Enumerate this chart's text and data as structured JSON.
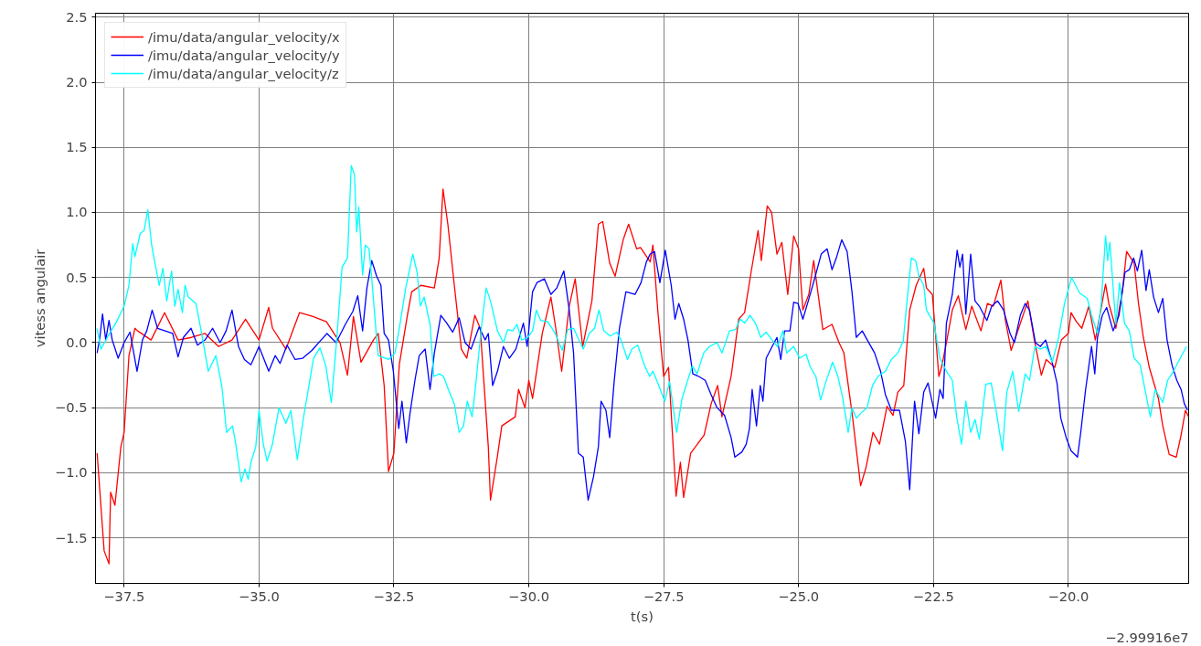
{
  "chart_data": {
    "type": "line",
    "xlabel": "t(s)",
    "ylabel": "vitess angulair",
    "annotations": [
      "−2.99916e7"
    ],
    "xlim": [
      -38.03,
      -17.77
    ],
    "ylim": [
      -1.85,
      2.53
    ],
    "xticks": [
      {
        "value": -37.5,
        "label": "−37.5"
      },
      {
        "value": -35.0,
        "label": "−35.0"
      },
      {
        "value": -32.5,
        "label": "−32.5"
      },
      {
        "value": -30.0,
        "label": "−30.0"
      },
      {
        "value": -27.5,
        "label": "−27.5"
      },
      {
        "value": -25.0,
        "label": "−25.0"
      },
      {
        "value": -22.5,
        "label": "−22.5"
      },
      {
        "value": -20.0,
        "label": "−20.0"
      }
    ],
    "yticks": [
      {
        "value": -1.5,
        "label": "−1.5"
      },
      {
        "value": -1.0,
        "label": "−1.0"
      },
      {
        "value": -0.5,
        "label": "−0.5"
      },
      {
        "value": 0,
        "label": "0.0"
      },
      {
        "value": 0.5,
        "label": "0.5"
      },
      {
        "value": 1.0,
        "label": "1.0"
      },
      {
        "value": 1.5,
        "label": "1.5"
      },
      {
        "value": 2.0,
        "label": "2.0"
      },
      {
        "value": 2.5,
        "label": "2.5"
      }
    ],
    "grid": true,
    "legend": "top left",
    "marker": "none",
    "line_style": "solid",
    "series": [
      {
        "name": "/imu/data/angular_velocity/x",
        "color": "#ff0000",
        "x": [
          -38.0,
          -37.87,
          -37.78,
          -37.75,
          -37.67,
          -37.56,
          -37.5,
          -37.41,
          -37.3,
          -37.25,
          -37.0,
          -36.75,
          -36.5,
          -36.25,
          -36.0,
          -35.75,
          -35.5,
          -35.25,
          -35.0,
          -34.82,
          -34.75,
          -34.5,
          -34.25,
          -34.0,
          -33.75,
          -33.5,
          -33.36,
          -33.25,
          -33.11,
          -33.0,
          -32.88,
          -32.79,
          -32.68,
          -32.6,
          -32.5,
          -32.4,
          -32.25,
          -32.17,
          -32.0,
          -31.75,
          -31.66,
          -31.59,
          -31.5,
          -31.38,
          -31.25,
          -31.15,
          -31.0,
          -30.9,
          -30.75,
          -30.71,
          -30.58,
          -30.5,
          -30.25,
          -30.19,
          -30.07,
          -30.0,
          -29.93,
          -29.75,
          -29.59,
          -29.5,
          -29.39,
          -29.25,
          -29.14,
          -29.0,
          -28.83,
          -28.71,
          -28.63,
          -28.5,
          -28.4,
          -28.25,
          -28.15,
          -28.0,
          -27.93,
          -27.75,
          -27.7,
          -27.61,
          -27.5,
          -27.41,
          -27.27,
          -27.19,
          -27.13,
          -27.0,
          -26.75,
          -26.62,
          -26.5,
          -26.42,
          -26.25,
          -26.11,
          -26.0,
          -25.88,
          -25.75,
          -25.69,
          -25.58,
          -25.5,
          -25.4,
          -25.31,
          -25.2,
          -25.09,
          -25.0,
          -24.92,
          -24.81,
          -24.72,
          -24.55,
          -24.38,
          -24.25,
          -24.16,
          -24.0,
          -23.85,
          -23.75,
          -23.62,
          -23.5,
          -23.36,
          -23.25,
          -23.16,
          -23.05,
          -22.94,
          -22.82,
          -22.68,
          -22.63,
          -22.52,
          -22.4,
          -22.35,
          -22.25,
          -22.15,
          -22.04,
          -21.9,
          -21.79,
          -21.62,
          -21.5,
          -21.39,
          -21.25,
          -21.17,
          -21.06,
          -20.92,
          -20.75,
          -20.63,
          -20.5,
          -20.41,
          -20.25,
          -20.13,
          -20.0,
          -19.95,
          -19.85,
          -19.75,
          -19.62,
          -19.5,
          -19.31,
          -19.25,
          -19.12,
          -19.0,
          -18.92,
          -18.78,
          -18.7,
          -18.61,
          -18.5,
          -18.33,
          -18.25,
          -18.13,
          -18.0,
          -17.91,
          -17.83,
          -17.77
        ],
        "values": [
          -0.85,
          -1.6,
          -1.7,
          -1.15,
          -1.25,
          -0.8,
          -0.69,
          -0.1,
          0.11,
          0.09,
          0.02,
          0.23,
          0.02,
          0.04,
          0.07,
          -0.03,
          0.02,
          0.18,
          0.02,
          0.27,
          0.11,
          -0.05,
          0.23,
          0.2,
          0.16,
          0.0,
          -0.25,
          0.2,
          -0.15,
          -0.07,
          0.02,
          0.07,
          -0.33,
          -0.99,
          -0.85,
          -0.17,
          0.21,
          0.39,
          0.44,
          0.42,
          0.65,
          1.18,
          0.91,
          0.44,
          -0.05,
          -0.12,
          0.21,
          0.11,
          -0.8,
          -1.21,
          -0.87,
          -0.64,
          -0.57,
          -0.36,
          -0.5,
          -0.29,
          -0.43,
          0.07,
          0.35,
          0.11,
          -0.22,
          0.28,
          0.49,
          -0.03,
          0.32,
          0.91,
          0.93,
          0.61,
          0.51,
          0.79,
          0.91,
          0.72,
          0.73,
          0.62,
          0.75,
          0.25,
          -0.26,
          -0.19,
          -1.18,
          -0.92,
          -1.19,
          -0.85,
          -0.71,
          -0.47,
          -0.33,
          -0.57,
          -0.26,
          0.18,
          0.23,
          0.54,
          0.86,
          0.63,
          1.05,
          1.0,
          0.68,
          0.77,
          0.37,
          0.82,
          0.72,
          0.25,
          0.37,
          0.63,
          0.1,
          0.14,
          0.0,
          -0.08,
          -0.57,
          -1.1,
          -0.96,
          -0.69,
          -0.78,
          -0.49,
          -0.56,
          -0.38,
          -0.33,
          0.25,
          0.44,
          0.57,
          0.42,
          0.37,
          -0.26,
          -0.19,
          0.02,
          0.25,
          0.36,
          0.1,
          0.28,
          0.09,
          0.3,
          0.28,
          0.48,
          0.18,
          -0.06,
          0.11,
          0.32,
          0.02,
          -0.25,
          -0.13,
          -0.19,
          0.02,
          0.07,
          0.23,
          0.16,
          0.11,
          0.28,
          0.02,
          0.45,
          0.3,
          0.11,
          0.39,
          0.7,
          0.61,
          0.3,
          0.04,
          -0.19,
          -0.43,
          -0.64,
          -0.86,
          -0.88,
          -0.71,
          -0.52,
          -0.57
        ]
      },
      {
        "name": "/imu/data/angular_velocity/y",
        "color": "#0000ff",
        "x": [
          -38.0,
          -37.95,
          -37.9,
          -37.84,
          -37.78,
          -37.72,
          -37.61,
          -37.5,
          -37.39,
          -37.26,
          -37.16,
          -37.08,
          -36.98,
          -36.88,
          -36.74,
          -36.6,
          -36.5,
          -36.4,
          -36.26,
          -36.14,
          -36.0,
          -35.86,
          -35.72,
          -35.61,
          -35.5,
          -35.38,
          -35.27,
          -35.15,
          -35.0,
          -34.82,
          -34.7,
          -34.61,
          -34.48,
          -34.33,
          -34.19,
          -34.02,
          -33.85,
          -33.74,
          -33.57,
          -33.4,
          -33.26,
          -33.17,
          -33.08,
          -33.0,
          -32.91,
          -32.82,
          -32.74,
          -32.68,
          -32.6,
          -32.51,
          -32.41,
          -32.35,
          -32.27,
          -32.2,
          -32.11,
          -32.03,
          -31.92,
          -31.83,
          -31.75,
          -31.63,
          -31.52,
          -31.41,
          -31.29,
          -31.18,
          -31.07,
          -30.92,
          -30.81,
          -30.75,
          -30.67,
          -30.58,
          -30.47,
          -30.36,
          -30.24,
          -30.1,
          -30.03,
          -29.93,
          -29.85,
          -29.71,
          -29.59,
          -29.48,
          -29.35,
          -29.25,
          -29.17,
          -29.08,
          -28.99,
          -28.9,
          -28.8,
          -28.71,
          -28.66,
          -28.57,
          -28.5,
          -28.42,
          -28.32,
          -28.2,
          -28.03,
          -27.92,
          -27.82,
          -27.75,
          -27.67,
          -27.57,
          -27.47,
          -27.36,
          -27.29,
          -27.22,
          -27.13,
          -27.05,
          -26.96,
          -26.85,
          -26.73,
          -26.62,
          -26.51,
          -26.37,
          -26.25,
          -26.18,
          -26.05,
          -25.97,
          -25.91,
          -25.86,
          -25.78,
          -25.71,
          -25.66,
          -25.6,
          -25.49,
          -25.4,
          -25.33,
          -25.26,
          -25.16,
          -25.09,
          -25.01,
          -24.92,
          -24.82,
          -24.69,
          -24.58,
          -24.47,
          -24.38,
          -24.3,
          -24.2,
          -24.1,
          -24.01,
          -23.93,
          -23.82,
          -23.7,
          -23.59,
          -23.48,
          -23.39,
          -23.28,
          -23.13,
          -23.02,
          -22.94,
          -22.85,
          -22.77,
          -22.68,
          -22.6,
          -22.46,
          -22.38,
          -22.32,
          -22.26,
          -22.15,
          -22.06,
          -22.01,
          -21.96,
          -21.9,
          -21.81,
          -21.73,
          -21.65,
          -21.51,
          -21.42,
          -21.31,
          -21.2,
          -21.08,
          -21.0,
          -20.89,
          -20.8,
          -20.72,
          -20.61,
          -20.52,
          -20.42,
          -20.3,
          -20.21,
          -20.14,
          -20.04,
          -19.95,
          -19.83,
          -19.77,
          -19.68,
          -19.57,
          -19.51,
          -19.46,
          -19.37,
          -19.29,
          -19.17,
          -19.06,
          -18.95,
          -18.87,
          -18.79,
          -18.72,
          -18.64,
          -18.56,
          -18.5,
          -18.42,
          -18.33,
          -18.25,
          -18.17,
          -18.08,
          -17.99,
          -17.91,
          -17.85,
          -17.79
        ],
        "values": [
          -0.08,
          0.04,
          0.22,
          0.02,
          0.17,
          0.02,
          -0.12,
          0.0,
          0.08,
          -0.22,
          0.02,
          0.09,
          0.25,
          0.11,
          0.09,
          0.07,
          -0.11,
          0.04,
          0.11,
          -0.02,
          0.02,
          0.11,
          0.0,
          0.09,
          0.25,
          -0.03,
          -0.13,
          -0.17,
          -0.03,
          -0.22,
          -0.1,
          -0.16,
          -0.02,
          -0.13,
          -0.12,
          -0.06,
          0.02,
          0.07,
          0.0,
          0.14,
          0.24,
          0.36,
          0.09,
          0.42,
          0.63,
          0.51,
          0.44,
          0.07,
          0.02,
          -0.22,
          -0.66,
          -0.45,
          -0.77,
          -0.54,
          -0.29,
          -0.1,
          -0.05,
          -0.36,
          -0.08,
          0.21,
          0.15,
          0.08,
          0.19,
          0.0,
          -0.05,
          0.12,
          0.02,
          0.07,
          -0.33,
          -0.22,
          -0.03,
          -0.12,
          -0.05,
          0.15,
          -0.03,
          0.39,
          0.46,
          0.49,
          0.37,
          0.42,
          0.55,
          0.25,
          -0.08,
          -0.85,
          -0.88,
          -1.21,
          -1.03,
          -0.8,
          -0.45,
          -0.52,
          -0.73,
          -0.31,
          0.11,
          0.39,
          0.37,
          0.46,
          0.62,
          0.68,
          0.7,
          0.46,
          0.71,
          0.44,
          0.18,
          0.3,
          0.18,
          0.02,
          -0.24,
          -0.26,
          -0.29,
          -0.4,
          -0.5,
          -0.56,
          -0.73,
          -0.88,
          -0.84,
          -0.78,
          -0.66,
          -0.36,
          -0.64,
          -0.33,
          -0.45,
          -0.12,
          -0.03,
          0.04,
          -0.13,
          0.09,
          0.09,
          0.31,
          0.3,
          0.18,
          0.32,
          0.51,
          0.68,
          0.72,
          0.56,
          0.65,
          0.79,
          0.7,
          0.39,
          0.04,
          0.09,
          0.0,
          -0.08,
          -0.22,
          -0.4,
          -0.52,
          -0.52,
          -0.76,
          -1.13,
          -0.45,
          -0.7,
          -0.38,
          -0.31,
          -0.58,
          -0.36,
          -0.43,
          0.15,
          0.37,
          0.71,
          0.58,
          0.68,
          0.22,
          0.68,
          0.32,
          0.28,
          0.17,
          0.28,
          0.32,
          0.25,
          0.07,
          0.0,
          0.21,
          0.3,
          0.25,
          0.0,
          -0.03,
          0.02,
          -0.15,
          -0.31,
          -0.58,
          -0.73,
          -0.83,
          -0.88,
          -0.69,
          -0.36,
          -0.03,
          -0.24,
          0.04,
          0.21,
          0.27,
          0.09,
          0.21,
          0.54,
          0.56,
          0.65,
          0.55,
          0.71,
          0.4,
          0.56,
          0.35,
          0.23,
          0.34,
          0.02,
          -0.17,
          -0.29,
          -0.36,
          -0.47,
          -0.52
        ]
      },
      {
        "name": "/imu/data/angular_velocity/z",
        "color": "#00ffff",
        "x": [
          -38.0,
          -37.93,
          -37.81,
          -37.64,
          -37.5,
          -37.41,
          -37.34,
          -37.3,
          -37.2,
          -37.13,
          -37.06,
          -36.99,
          -36.85,
          -36.78,
          -36.71,
          -36.62,
          -36.56,
          -36.5,
          -36.42,
          -36.37,
          -36.31,
          -36.17,
          -36.08,
          -35.94,
          -35.8,
          -35.69,
          -35.6,
          -35.49,
          -35.43,
          -35.33,
          -35.26,
          -35.2,
          -35.15,
          -35.06,
          -35.0,
          -34.92,
          -34.85,
          -34.75,
          -34.63,
          -34.5,
          -34.41,
          -34.29,
          -34.18,
          -34.07,
          -33.99,
          -33.87,
          -33.76,
          -33.66,
          -33.56,
          -33.46,
          -33.36,
          -33.29,
          -33.23,
          -33.19,
          -33.15,
          -33.08,
          -33.03,
          -32.96,
          -32.91,
          -32.82,
          -32.79,
          -32.6,
          -32.48,
          -32.4,
          -32.28,
          -32.15,
          -32.07,
          -32.01,
          -31.94,
          -31.83,
          -31.76,
          -31.66,
          -31.58,
          -31.49,
          -31.38,
          -31.29,
          -31.21,
          -31.14,
          -31.05,
          -30.98,
          -30.88,
          -30.79,
          -30.71,
          -30.58,
          -30.47,
          -30.39,
          -30.3,
          -30.22,
          -30.13,
          -30.02,
          -29.93,
          -29.86,
          -29.78,
          -29.65,
          -29.51,
          -29.38,
          -29.28,
          -29.17,
          -29.07,
          -28.99,
          -28.88,
          -28.78,
          -28.7,
          -28.61,
          -28.49,
          -28.37,
          -28.29,
          -28.17,
          -28.09,
          -27.98,
          -27.86,
          -27.76,
          -27.7,
          -27.61,
          -27.48,
          -27.39,
          -27.26,
          -27.16,
          -27.07,
          -26.97,
          -26.88,
          -26.76,
          -26.65,
          -26.51,
          -26.42,
          -26.28,
          -26.17,
          -26.08,
          -26.0,
          -25.9,
          -25.8,
          -25.7,
          -25.6,
          -25.49,
          -25.39,
          -25.29,
          -25.22,
          -25.09,
          -24.98,
          -24.86,
          -24.78,
          -24.68,
          -24.59,
          -24.5,
          -24.37,
          -24.27,
          -24.18,
          -24.08,
          -24.01,
          -23.93,
          -23.84,
          -23.73,
          -23.63,
          -23.53,
          -23.39,
          -23.28,
          -23.16,
          -23.06,
          -22.99,
          -22.91,
          -22.83,
          -22.77,
          -22.68,
          -22.63,
          -22.49,
          -22.38,
          -22.26,
          -22.15,
          -22.07,
          -21.98,
          -21.9,
          -21.81,
          -21.73,
          -21.65,
          -21.53,
          -21.43,
          -21.34,
          -21.22,
          -21.14,
          -21.03,
          -20.92,
          -20.8,
          -20.72,
          -20.62,
          -20.52,
          -20.41,
          -20.3,
          -20.19,
          -20.07,
          -19.94,
          -19.79,
          -19.65,
          -19.57,
          -19.46,
          -19.39,
          -19.31,
          -19.27,
          -19.23,
          -19.12,
          -19.05,
          -18.96,
          -18.87,
          -18.78,
          -18.67,
          -18.56,
          -18.48,
          -18.39,
          -18.25,
          -18.16,
          -18.05,
          -17.94,
          -17.81
        ],
        "values": [
          0.11,
          -0.05,
          0.04,
          0.16,
          0.28,
          0.44,
          0.76,
          0.66,
          0.84,
          0.86,
          1.02,
          0.75,
          0.44,
          0.57,
          0.32,
          0.55,
          0.28,
          0.41,
          0.23,
          0.44,
          0.35,
          0.3,
          0.11,
          -0.22,
          -0.1,
          -0.33,
          -0.69,
          -0.64,
          -0.78,
          -1.07,
          -0.97,
          -1.05,
          -0.92,
          -0.8,
          -0.52,
          -0.78,
          -0.91,
          -0.78,
          -0.5,
          -0.62,
          -0.52,
          -0.9,
          -0.59,
          -0.32,
          -0.12,
          -0.04,
          -0.18,
          -0.46,
          0.02,
          0.58,
          0.65,
          1.36,
          1.29,
          0.85,
          1.04,
          0.52,
          0.75,
          0.72,
          0.49,
          0.03,
          -0.1,
          -0.13,
          -0.08,
          0.11,
          0.42,
          0.68,
          0.54,
          0.28,
          0.35,
          0.14,
          -0.26,
          -0.24,
          -0.26,
          -0.36,
          -0.47,
          -0.69,
          -0.64,
          -0.45,
          -0.57,
          -0.31,
          0.11,
          0.42,
          0.32,
          0.09,
          0.0,
          0.1,
          0.09,
          0.14,
          0.02,
          0.04,
          0.09,
          0.25,
          0.17,
          0.16,
          0.07,
          -0.06,
          0.1,
          0.11,
          0.02,
          -0.05,
          0.07,
          0.11,
          0.25,
          0.09,
          0.05,
          0.08,
          0.02,
          -0.13,
          -0.05,
          -0.02,
          -0.17,
          -0.26,
          -0.22,
          -0.31,
          -0.45,
          -0.3,
          -0.69,
          -0.43,
          -0.31,
          -0.18,
          -0.24,
          -0.08,
          -0.03,
          0.0,
          -0.08,
          0.09,
          0.1,
          0.18,
          0.15,
          0.21,
          0.15,
          0.04,
          0.08,
          0.02,
          -0.03,
          0.09,
          -0.08,
          -0.03,
          -0.12,
          -0.09,
          -0.19,
          -0.26,
          -0.44,
          -0.31,
          -0.15,
          -0.26,
          -0.43,
          -0.69,
          -0.5,
          -0.58,
          -0.54,
          -0.5,
          -0.33,
          -0.26,
          -0.22,
          -0.13,
          -0.08,
          0.01,
          0.32,
          0.65,
          0.63,
          0.51,
          0.44,
          0.25,
          0.15,
          -0.12,
          -0.22,
          -0.29,
          -0.57,
          -0.78,
          -0.45,
          -0.69,
          -0.59,
          -0.74,
          -0.32,
          -0.31,
          -0.52,
          -0.83,
          -0.38,
          -0.22,
          -0.53,
          -0.24,
          -0.29,
          -0.03,
          -0.05,
          -0.03,
          -0.15,
          0.02,
          0.3,
          0.5,
          0.38,
          0.34,
          0.21,
          0.07,
          0.3,
          0.82,
          0.63,
          0.77,
          0.14,
          0.46,
          0.15,
          0.09,
          -0.12,
          -0.17,
          -0.4,
          -0.57,
          -0.36,
          -0.46,
          -0.29,
          -0.22,
          -0.13,
          -0.03
        ]
      }
    ]
  }
}
